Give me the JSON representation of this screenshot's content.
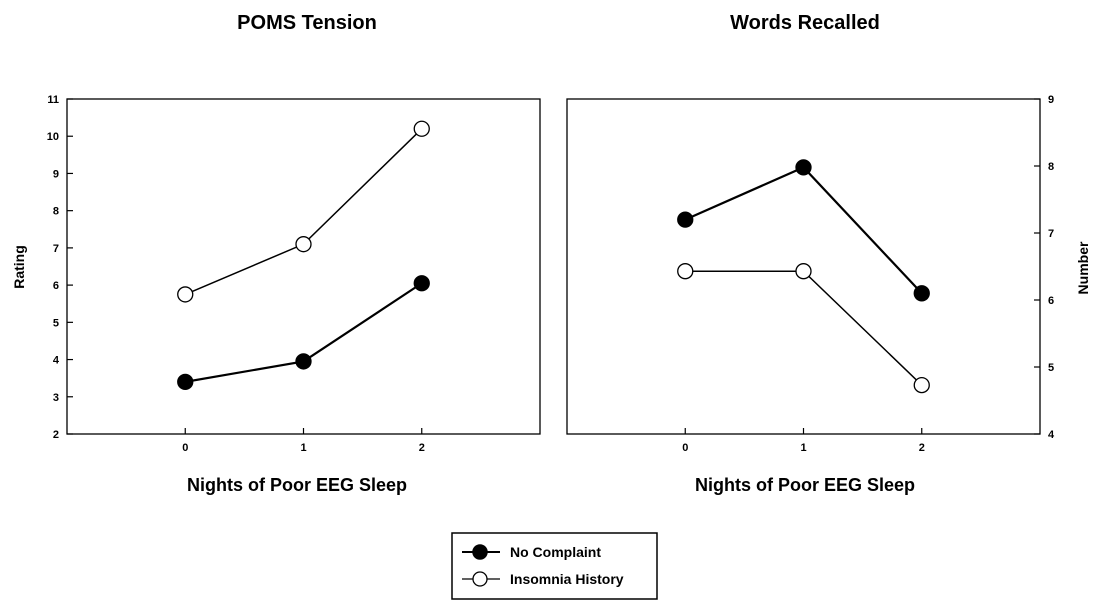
{
  "chart_data": [
    {
      "type": "line",
      "title": "POMS Tension",
      "xlabel": "Nights of Poor EEG Sleep",
      "ylabel": "Rating",
      "categories": [
        "0",
        "1",
        "2"
      ],
      "xlim": [
        -1,
        3
      ],
      "ylim": [
        2,
        11
      ],
      "yticks": [
        2,
        3,
        4,
        5,
        6,
        7,
        8,
        9,
        10,
        11
      ],
      "ytick_side": "left",
      "series": [
        {
          "name": "No Complaint",
          "marker": "filled",
          "values": [
            3.4,
            3.95,
            6.05
          ]
        },
        {
          "name": "Insomnia History",
          "marker": "open",
          "values": [
            5.75,
            7.1,
            10.2
          ]
        }
      ]
    },
    {
      "type": "line",
      "title": "Words Recalled",
      "xlabel": "Nights of Poor EEG Sleep",
      "ylabel": "Number",
      "categories": [
        "0",
        "1",
        "2"
      ],
      "xlim": [
        -1,
        3
      ],
      "ylim": [
        4,
        9
      ],
      "yticks": [
        4,
        5,
        6,
        7,
        8,
        9
      ],
      "ytick_side": "right",
      "series": [
        {
          "name": "No Complaint",
          "marker": "filled",
          "values": [
            7.2,
            7.98,
            6.1
          ]
        },
        {
          "name": "Insomnia History",
          "marker": "open",
          "values": [
            6.43,
            6.43,
            4.73
          ]
        }
      ]
    }
  ],
  "legend": {
    "placement": "bottom-center",
    "entries": [
      {
        "label": "No Complaint",
        "marker": "filled"
      },
      {
        "label": "Insomnia History",
        "marker": "open"
      }
    ]
  },
  "colors": {
    "line": "#000000",
    "filled_marker": "#000000",
    "open_marker": "#ffffff"
  }
}
